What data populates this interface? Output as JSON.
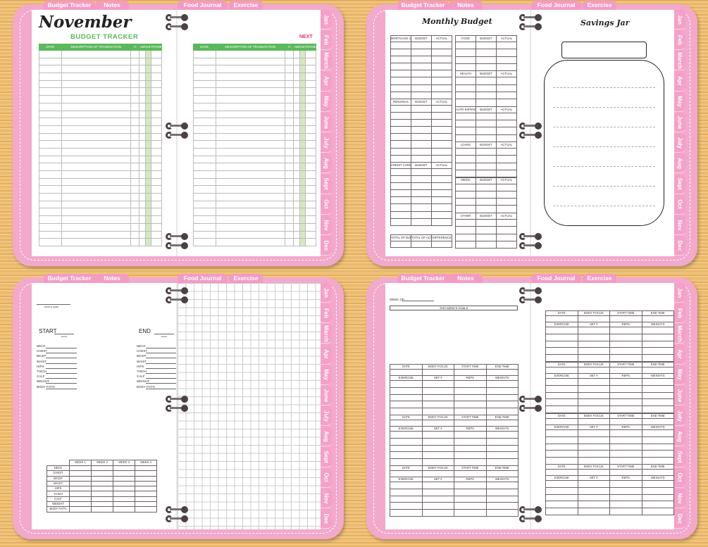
{
  "top_tabs": [
    "Budget Tracker",
    "Notes",
    "Food Journal",
    "Exercise"
  ],
  "month_tabs": [
    "Jan",
    "Feb",
    "March",
    "Apr",
    "May",
    "June",
    "July",
    "Aug",
    "Sept",
    "Oct",
    "Nov",
    "Dec"
  ],
  "colors": {
    "frame": "#f2a9cb",
    "tab": "#f49bc4",
    "green": "#5cb85c",
    "amount_fill": "#d6e8c0",
    "next": "#e8336b"
  },
  "budget_tracker": {
    "month": "November",
    "title": "BUDGET TRACKER",
    "next": "NEXT",
    "columns": [
      "DATE",
      "DESCRIPTION OF TRANSACTION",
      "+/-",
      "AMOUNT",
      "PAYMENT METHOD"
    ],
    "currency_symbol": "$"
  },
  "monthly_budget": {
    "title": "Monthly Budget",
    "left_sections": [
      {
        "name": "MORTGAGE UTILITIES"
      },
      {
        "name": "PERSONAL"
      },
      {
        "name": "CREDIT CARD"
      }
    ],
    "right_sections": [
      {
        "name": "FOOD"
      },
      {
        "name": "HEALTH"
      },
      {
        "name": "AUTO EXPENSES"
      },
      {
        "name": "LOANS"
      },
      {
        "name": "MEDIA"
      },
      {
        "name": "OTHER"
      }
    ],
    "budget_label": "BUDGET",
    "actual_label": "ACTUAL",
    "totals": [
      "TOTAL OF BUDGET",
      "TOTAL OF ACTUAL",
      "DIFFERENCE"
    ]
  },
  "savings_jar": {
    "title": "Savings Jar"
  },
  "measurements": {
    "month_here": "MONTH HERE",
    "start": "START",
    "end": "END",
    "date": "DATE",
    "items": [
      "NECK",
      "CHEST",
      "BICEP",
      "WAIST",
      "HIPS",
      "THIGH",
      "CALF",
      "WEIGHT",
      "BODY FAT%"
    ],
    "weeks": [
      "WEEK 1",
      "WEEK 2",
      "WEEK 3",
      "WEEK 4"
    ]
  },
  "workout": {
    "week_of": "WEEK OF:",
    "goals": "THIS WEEK'S GOALS",
    "header1": [
      "DATE",
      "BODY FOCUS",
      "START TIME",
      "END TIME"
    ],
    "header2": [
      "EXERCISE",
      "SET #",
      "REPS",
      "WEIGHTS"
    ]
  }
}
